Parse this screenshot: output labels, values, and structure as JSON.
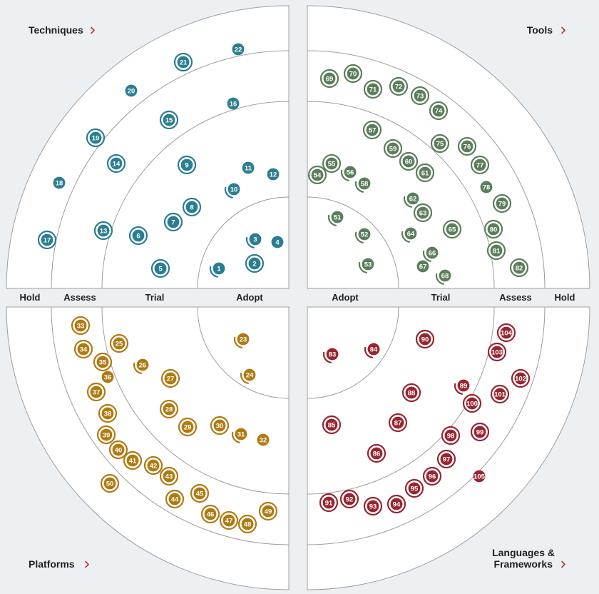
{
  "quadrants": [
    {
      "id": "techniques",
      "title_lines": [
        "Techniques"
      ],
      "color": "#2b7d92"
    },
    {
      "id": "tools",
      "title_lines": [
        "Tools"
      ],
      "color": "#5b7d5b"
    },
    {
      "id": "platforms",
      "title_lines": [
        "Platforms"
      ],
      "color": "#b07a11"
    },
    {
      "id": "languages",
      "title_lines": [
        "Languages &",
        "Frameworks"
      ],
      "color": "#98252f"
    }
  ],
  "rings_left": [
    "Hold",
    "Assess",
    "Trial",
    "Adopt"
  ],
  "rings_right": [
    "Adopt",
    "Trial",
    "Assess",
    "Hold"
  ],
  "blip_types": {
    "new": "double circle",
    "moved": "partial arc",
    "unchanged": "plain circle"
  },
  "blips": {
    "techniques": [
      {
        "n": "1",
        "t": "moved"
      },
      {
        "n": "2",
        "t": "new"
      },
      {
        "n": "3",
        "t": "moved"
      },
      {
        "n": "4",
        "t": "unchanged"
      },
      {
        "n": "5",
        "t": "new"
      },
      {
        "n": "6",
        "t": "new"
      },
      {
        "n": "7",
        "t": "new"
      },
      {
        "n": "8",
        "t": "new"
      },
      {
        "n": "9",
        "t": "new"
      },
      {
        "n": "10",
        "t": "moved"
      },
      {
        "n": "11",
        "t": "unchanged"
      },
      {
        "n": "12",
        "t": "unchanged"
      },
      {
        "n": "13",
        "t": "new"
      },
      {
        "n": "14",
        "t": "new"
      },
      {
        "n": "15",
        "t": "new"
      },
      {
        "n": "16",
        "t": "unchanged"
      },
      {
        "n": "17",
        "t": "new"
      },
      {
        "n": "18",
        "t": "unchanged"
      },
      {
        "n": "19",
        "t": "new"
      },
      {
        "n": "20",
        "t": "unchanged"
      },
      {
        "n": "21",
        "t": "new"
      },
      {
        "n": "22",
        "t": "unchanged"
      }
    ],
    "tools": [
      {
        "n": "51",
        "t": "moved"
      },
      {
        "n": "52",
        "t": "moved"
      },
      {
        "n": "53",
        "t": "moved"
      },
      {
        "n": "54",
        "t": "new"
      },
      {
        "n": "55",
        "t": "new"
      },
      {
        "n": "56",
        "t": "moved"
      },
      {
        "n": "57",
        "t": "new"
      },
      {
        "n": "58",
        "t": "moved"
      },
      {
        "n": "59",
        "t": "new"
      },
      {
        "n": "60",
        "t": "new"
      },
      {
        "n": "61",
        "t": "new"
      },
      {
        "n": "62",
        "t": "moved"
      },
      {
        "n": "63",
        "t": "new"
      },
      {
        "n": "64",
        "t": "moved"
      },
      {
        "n": "65",
        "t": "new"
      },
      {
        "n": "66",
        "t": "moved"
      },
      {
        "n": "67",
        "t": "unchanged"
      },
      {
        "n": "68",
        "t": "moved"
      },
      {
        "n": "69",
        "t": "new"
      },
      {
        "n": "70",
        "t": "new"
      },
      {
        "n": "71",
        "t": "new"
      },
      {
        "n": "72",
        "t": "new"
      },
      {
        "n": "73",
        "t": "new"
      },
      {
        "n": "74",
        "t": "new"
      },
      {
        "n": "75",
        "t": "new"
      },
      {
        "n": "76",
        "t": "new"
      },
      {
        "n": "77",
        "t": "new"
      },
      {
        "n": "78",
        "t": "unchanged"
      },
      {
        "n": "79",
        "t": "new"
      },
      {
        "n": "80",
        "t": "new"
      },
      {
        "n": "81",
        "t": "new"
      },
      {
        "n": "82",
        "t": "new"
      }
    ],
    "platforms": [
      {
        "n": "23",
        "t": "moved"
      },
      {
        "n": "24",
        "t": "moved"
      },
      {
        "n": "25",
        "t": "new"
      },
      {
        "n": "26",
        "t": "moved"
      },
      {
        "n": "27",
        "t": "new"
      },
      {
        "n": "28",
        "t": "new"
      },
      {
        "n": "29",
        "t": "new"
      },
      {
        "n": "30",
        "t": "new"
      },
      {
        "n": "31",
        "t": "moved"
      },
      {
        "n": "32",
        "t": "unchanged"
      },
      {
        "n": "33",
        "t": "new"
      },
      {
        "n": "34",
        "t": "new"
      },
      {
        "n": "35",
        "t": "new"
      },
      {
        "n": "36",
        "t": "unchanged"
      },
      {
        "n": "37",
        "t": "new"
      },
      {
        "n": "38",
        "t": "new"
      },
      {
        "n": "39",
        "t": "new"
      },
      {
        "n": "40",
        "t": "new"
      },
      {
        "n": "41",
        "t": "new"
      },
      {
        "n": "42",
        "t": "new"
      },
      {
        "n": "43",
        "t": "new"
      },
      {
        "n": "44",
        "t": "new"
      },
      {
        "n": "45",
        "t": "new"
      },
      {
        "n": "46",
        "t": "new"
      },
      {
        "n": "47",
        "t": "new"
      },
      {
        "n": "48",
        "t": "new"
      },
      {
        "n": "49",
        "t": "new"
      },
      {
        "n": "50",
        "t": "new"
      }
    ],
    "languages": [
      {
        "n": "83",
        "t": "moved"
      },
      {
        "n": "84",
        "t": "moved"
      },
      {
        "n": "85",
        "t": "new"
      },
      {
        "n": "86",
        "t": "new"
      },
      {
        "n": "87",
        "t": "new"
      },
      {
        "n": "88",
        "t": "new"
      },
      {
        "n": "89",
        "t": "moved"
      },
      {
        "n": "90",
        "t": "new"
      },
      {
        "n": "91",
        "t": "new"
      },
      {
        "n": "92",
        "t": "new"
      },
      {
        "n": "93",
        "t": "new"
      },
      {
        "n": "94",
        "t": "new"
      },
      {
        "n": "95",
        "t": "new"
      },
      {
        "n": "96",
        "t": "new"
      },
      {
        "n": "97",
        "t": "new"
      },
      {
        "n": "98",
        "t": "new"
      },
      {
        "n": "99",
        "t": "new"
      },
      {
        "n": "100",
        "t": "new"
      },
      {
        "n": "101",
        "t": "new"
      },
      {
        "n": "102",
        "t": "new"
      },
      {
        "n": "103",
        "t": "new"
      },
      {
        "n": "104",
        "t": "new"
      },
      {
        "n": "105",
        "t": "unchanged"
      }
    ]
  }
}
